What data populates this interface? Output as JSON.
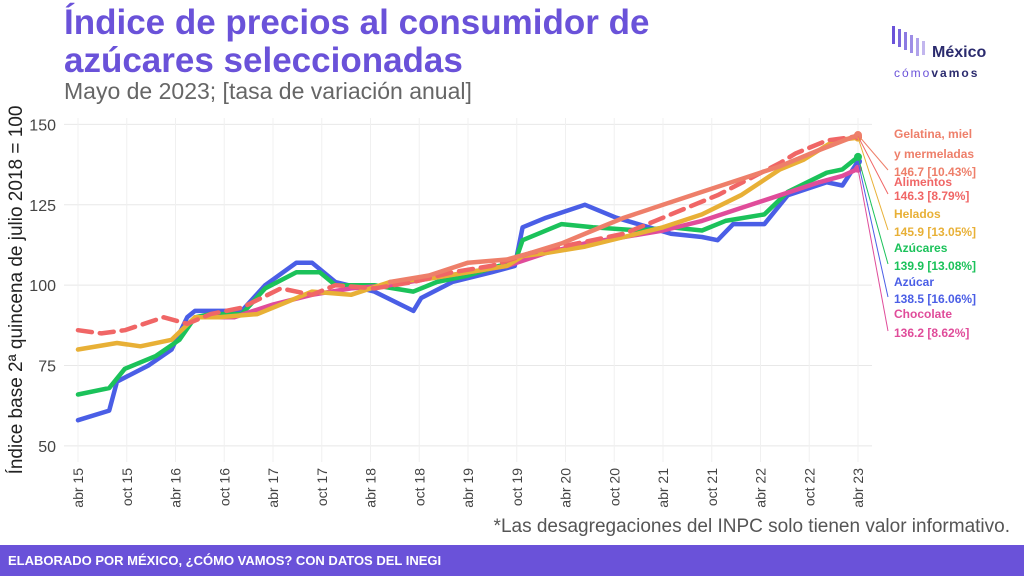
{
  "header": {
    "title": "Índice de precios al consumidor de azúcares seleccionadas",
    "subtitle": "Mayo de 2023; [tasa de variación anual]"
  },
  "logo": {
    "line1": "México",
    "line2a": "cómo",
    "line2b": "vamos"
  },
  "footnote": "*Las desagregaciones del INPC solo tienen valor informativo.",
  "footer": "ELABORADO POR MÉXICO, ¿CÓMO VAMOS? CON DATOS DEL INEGI",
  "colors": {
    "brand": "#6a52d9",
    "footer_bg": "#6a52d9"
  },
  "chart_data": {
    "type": "line",
    "ylabel": "Índice base 2ª quincena de julio 2018 = 100",
    "xlabel": "",
    "ylim": [
      45,
      152
    ],
    "yticks": [
      50,
      75,
      100,
      125,
      150
    ],
    "grid": true,
    "x_start": "2015-04",
    "x_end": "2023-05",
    "xticks": [
      "abr 15",
      "oct 15",
      "abr 16",
      "oct 16",
      "abr 17",
      "oct 17",
      "abr 18",
      "oct 18",
      "abr 19",
      "oct 19",
      "abr 20",
      "oct 20",
      "abr 21",
      "oct 21",
      "abr 22",
      "oct 22",
      "abr 23"
    ],
    "legend": "right, labels at line ends",
    "series": [
      {
        "name": "Azúcar",
        "value_label": "138.5 [16.06%]",
        "color": "#4a5ee6",
        "style": "solid",
        "points": [
          [
            0,
            58
          ],
          [
            4,
            61
          ],
          [
            5,
            70
          ],
          [
            9,
            75
          ],
          [
            12,
            80
          ],
          [
            14,
            90
          ],
          [
            15,
            92
          ],
          [
            17,
            92
          ],
          [
            21,
            92
          ],
          [
            24,
            100
          ],
          [
            28,
            107
          ],
          [
            30,
            107
          ],
          [
            33,
            101
          ],
          [
            38,
            98
          ],
          [
            43,
            92
          ],
          [
            44,
            96
          ],
          [
            48,
            101
          ],
          [
            53,
            104
          ],
          [
            56,
            106
          ],
          [
            57,
            118
          ],
          [
            60,
            121
          ],
          [
            65,
            125
          ],
          [
            69,
            121
          ],
          [
            76,
            116
          ],
          [
            80,
            115
          ],
          [
            82,
            114
          ],
          [
            84,
            119
          ],
          [
            88,
            119
          ],
          [
            91,
            128
          ],
          [
            96,
            132
          ],
          [
            98,
            131
          ],
          [
            100,
            138.5
          ]
        ]
      },
      {
        "name": "Azúcares",
        "value_label": "139.9 [13.08%]",
        "color": "#1bc25a",
        "style": "solid",
        "points": [
          [
            0,
            66
          ],
          [
            4,
            68
          ],
          [
            6,
            74
          ],
          [
            10,
            78
          ],
          [
            13,
            83
          ],
          [
            15,
            90
          ],
          [
            17,
            91
          ],
          [
            21,
            91
          ],
          [
            24,
            99
          ],
          [
            28,
            104
          ],
          [
            31,
            104
          ],
          [
            33,
            100
          ],
          [
            38,
            100
          ],
          [
            43,
            98
          ],
          [
            46,
            101
          ],
          [
            50,
            103
          ],
          [
            54,
            106
          ],
          [
            56,
            107
          ],
          [
            57,
            114
          ],
          [
            62,
            119
          ],
          [
            66,
            118
          ],
          [
            72,
            117
          ],
          [
            76,
            118
          ],
          [
            80,
            117
          ],
          [
            83,
            120
          ],
          [
            88,
            122
          ],
          [
            91,
            129
          ],
          [
            96,
            135
          ],
          [
            98,
            136
          ],
          [
            100,
            139.9
          ]
        ]
      },
      {
        "name": "Chocolate",
        "value_label": "136.2 [8.62%]",
        "color": "#e04c9a",
        "style": "solid",
        "points": [
          [
            15,
            90
          ],
          [
            20,
            90
          ],
          [
            25,
            94
          ],
          [
            30,
            97
          ],
          [
            35,
            99
          ],
          [
            40,
            100
          ],
          [
            45,
            102
          ],
          [
            50,
            104
          ],
          [
            55,
            106
          ],
          [
            60,
            110
          ],
          [
            65,
            113
          ],
          [
            70,
            115
          ],
          [
            75,
            117
          ],
          [
            80,
            120
          ],
          [
            85,
            124
          ],
          [
            90,
            128
          ],
          [
            95,
            132
          ],
          [
            98,
            134
          ],
          [
            100,
            136.2
          ]
        ]
      },
      {
        "name": "Helados",
        "value_label": "145.9 [13.05%]",
        "color": "#e8b036",
        "style": "solid",
        "points": [
          [
            0,
            80
          ],
          [
            5,
            82
          ],
          [
            8,
            81
          ],
          [
            12,
            83
          ],
          [
            15,
            90
          ],
          [
            18,
            90
          ],
          [
            23,
            91
          ],
          [
            27,
            95
          ],
          [
            30,
            98
          ],
          [
            35,
            97
          ],
          [
            40,
            101
          ],
          [
            45,
            102
          ],
          [
            50,
            104
          ],
          [
            55,
            106
          ],
          [
            57,
            109
          ],
          [
            60,
            110
          ],
          [
            65,
            112
          ],
          [
            70,
            115
          ],
          [
            75,
            118
          ],
          [
            80,
            122
          ],
          [
            85,
            128
          ],
          [
            90,
            136
          ],
          [
            93,
            139
          ],
          [
            97,
            145
          ],
          [
            100,
            145.9
          ]
        ]
      },
      {
        "name": "Alimentos",
        "value_label": "146.3 [8.79%]",
        "color": "#f06666",
        "style": "dashed",
        "points": [
          [
            0,
            86
          ],
          [
            3,
            85
          ],
          [
            6,
            86
          ],
          [
            11,
            90
          ],
          [
            14,
            88
          ],
          [
            17,
            91
          ],
          [
            21,
            93
          ],
          [
            26,
            99
          ],
          [
            30,
            97
          ],
          [
            33,
            100
          ],
          [
            38,
            99
          ],
          [
            43,
            101
          ],
          [
            48,
            104
          ],
          [
            53,
            106
          ],
          [
            58,
            110
          ],
          [
            62,
            112
          ],
          [
            66,
            114
          ],
          [
            70,
            116
          ],
          [
            74,
            120
          ],
          [
            78,
            124
          ],
          [
            82,
            128
          ],
          [
            86,
            133
          ],
          [
            90,
            138
          ],
          [
            92,
            141
          ],
          [
            96,
            145
          ],
          [
            100,
            146.3
          ]
        ]
      },
      {
        "name": "Gelatina, miel y mermeladas",
        "value_label": "146.7 [10.43%]",
        "color": "#ee7f6a",
        "style": "solid",
        "points": [
          [
            40,
            101
          ],
          [
            45,
            103
          ],
          [
            50,
            107
          ],
          [
            55,
            108
          ],
          [
            58,
            110
          ],
          [
            62,
            113
          ],
          [
            66,
            117
          ],
          [
            70,
            121
          ],
          [
            75,
            125
          ],
          [
            80,
            129
          ],
          [
            85,
            133
          ],
          [
            90,
            137
          ],
          [
            95,
            142
          ],
          [
            100,
            146.7
          ]
        ]
      }
    ]
  }
}
